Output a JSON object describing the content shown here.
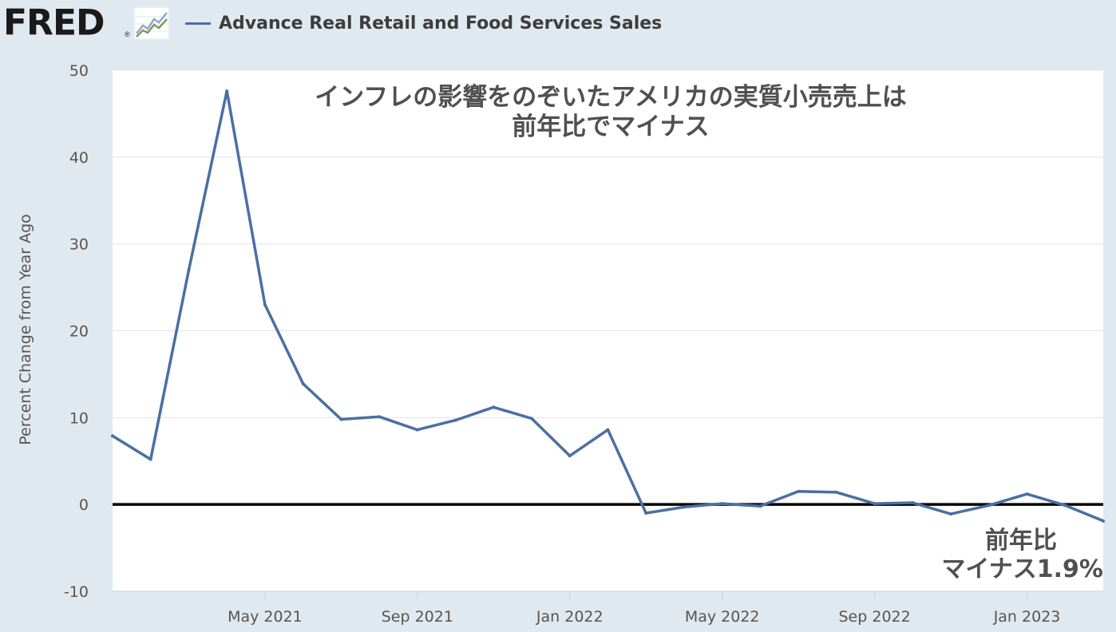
{
  "header": {
    "logo_text": "FRED",
    "logo_registered": "®",
    "series_title": "Advance Real Retail and Food Services Sales"
  },
  "colors": {
    "series": "#4b6fa1",
    "background": "#e1e9f0",
    "plot_background": "#ffffff",
    "zero_line": "#000000",
    "annotation_text": "#505050"
  },
  "annotations": {
    "title_line1": "インフレの影響をのぞいたアメリカの実質小売売上は",
    "title_line2": "前年比でマイナス",
    "value_line1": "前年比",
    "value_line2": "マイナス1.9%"
  },
  "chart_data": {
    "type": "line",
    "title": "",
    "xlabel": "",
    "ylabel": "Percent Change from Year Ago",
    "ylim": [
      -10,
      50
    ],
    "yticks": [
      -10,
      0,
      10,
      20,
      30,
      40,
      50
    ],
    "xlim": [
      "2021-01",
      "2023-03"
    ],
    "xticks": [
      {
        "date": "2021-05",
        "label": "May 2021"
      },
      {
        "date": "2021-09",
        "label": "Sep 2021"
      },
      {
        "date": "2022-01",
        "label": "Jan 2022"
      },
      {
        "date": "2022-05",
        "label": "May 2022"
      },
      {
        "date": "2022-09",
        "label": "Sep 2022"
      },
      {
        "date": "2023-01",
        "label": "Jan 2023"
      }
    ],
    "grid": "horizontal",
    "reference_line": 0,
    "series": [
      {
        "name": "Advance Real Retail and Food Services Sales",
        "x": [
          "2021-01",
          "2021-02",
          "2021-03",
          "2021-04",
          "2021-05",
          "2021-06",
          "2021-07",
          "2021-08",
          "2021-09",
          "2021-10",
          "2021-11",
          "2021-12",
          "2022-01",
          "2022-02",
          "2022-03",
          "2022-04",
          "2022-05",
          "2022-06",
          "2022-07",
          "2022-08",
          "2022-09",
          "2022-10",
          "2022-11",
          "2022-12",
          "2023-01",
          "2023-02",
          "2023-03"
        ],
        "y": [
          7.9,
          5.2,
          27.0,
          47.6,
          23.0,
          13.9,
          9.8,
          10.1,
          8.6,
          9.7,
          11.2,
          9.9,
          5.6,
          8.6,
          -1.0,
          -0.3,
          0.1,
          -0.2,
          1.5,
          1.4,
          0.1,
          0.2,
          -1.1,
          -0.1,
          1.2,
          -0.1,
          -1.9
        ]
      }
    ]
  }
}
